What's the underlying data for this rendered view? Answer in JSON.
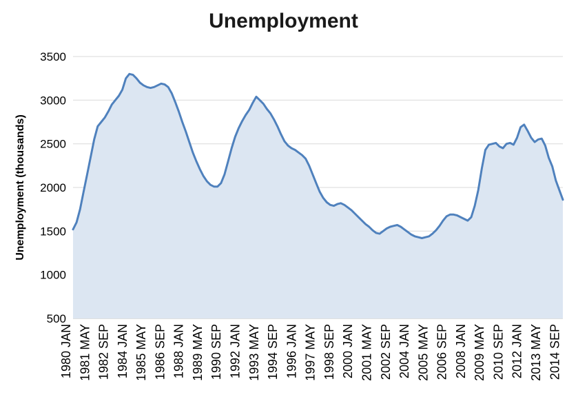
{
  "chart_data": {
    "type": "area",
    "title": "Unemployment",
    "ylabel": "Unemployment (thousands)",
    "xlabel": "",
    "ylim": [
      500,
      3500
    ],
    "y_ticks": [
      500,
      1000,
      1500,
      2000,
      2500,
      3000,
      3500
    ],
    "grid": true,
    "legend": false,
    "x_domain_months": [
      0,
      417
    ],
    "x_tick_labels": [
      "1980 JAN",
      "1981 MAY",
      "1982 SEP",
      "1984 JAN",
      "1985 MAY",
      "1986 SEP",
      "1988 JAN",
      "1989 MAY",
      "1990 SEP",
      "1992 JAN",
      "1993 MAY",
      "1994 SEP",
      "1996 JAN",
      "1997 MAY",
      "1998 SEP",
      "2000 JAN",
      "2001 MAY",
      "2002 SEP",
      "2004 JAN",
      "2005 MAY",
      "2006 SEP",
      "2008 JAN",
      "2009 MAY",
      "2010 SEP",
      "2012 JAN",
      "2013 MAY",
      "2014 SEP"
    ],
    "x_tick_month_offsets": [
      0,
      16,
      32,
      48,
      64,
      80,
      96,
      112,
      128,
      144,
      160,
      176,
      192,
      208,
      224,
      240,
      256,
      272,
      288,
      304,
      320,
      336,
      352,
      368,
      384,
      400,
      416
    ],
    "series": [
      {
        "name": "Unemployment (thousands)",
        "x_start_label": "1980 JAN",
        "x_month_step": 3,
        "values": [
          1520,
          1600,
          1750,
          1950,
          2150,
          2350,
          2550,
          2700,
          2750,
          2800,
          2870,
          2950,
          3000,
          3050,
          3120,
          3250,
          3300,
          3290,
          3250,
          3200,
          3170,
          3150,
          3140,
          3150,
          3170,
          3190,
          3180,
          3150,
          3080,
          2980,
          2870,
          2750,
          2640,
          2520,
          2400,
          2300,
          2210,
          2130,
          2070,
          2030,
          2010,
          2010,
          2050,
          2150,
          2300,
          2450,
          2580,
          2680,
          2760,
          2830,
          2890,
          2970,
          3040,
          3000,
          2960,
          2900,
          2850,
          2780,
          2700,
          2610,
          2530,
          2480,
          2450,
          2430,
          2400,
          2370,
          2330,
          2250,
          2150,
          2050,
          1950,
          1880,
          1830,
          1800,
          1790,
          1810,
          1820,
          1800,
          1770,
          1740,
          1700,
          1660,
          1620,
          1580,
          1550,
          1510,
          1480,
          1470,
          1500,
          1530,
          1550,
          1560,
          1570,
          1550,
          1520,
          1490,
          1460,
          1440,
          1430,
          1420,
          1430,
          1440,
          1470,
          1510,
          1560,
          1620,
          1670,
          1690,
          1690,
          1680,
          1660,
          1640,
          1620,
          1660,
          1790,
          1970,
          2220,
          2430,
          2490,
          2500,
          2510,
          2470,
          2450,
          2500,
          2510,
          2490,
          2570,
          2690,
          2720,
          2650,
          2570,
          2520,
          2550,
          2560,
          2480,
          2340,
          2240,
          2080,
          1970,
          1860
        ]
      }
    ],
    "colors": {
      "line": "#4f81bd",
      "fill": "#dce6f2",
      "gridline": "#d9d9d9",
      "axis": "#bfbfbf",
      "text": "#000000"
    }
  }
}
